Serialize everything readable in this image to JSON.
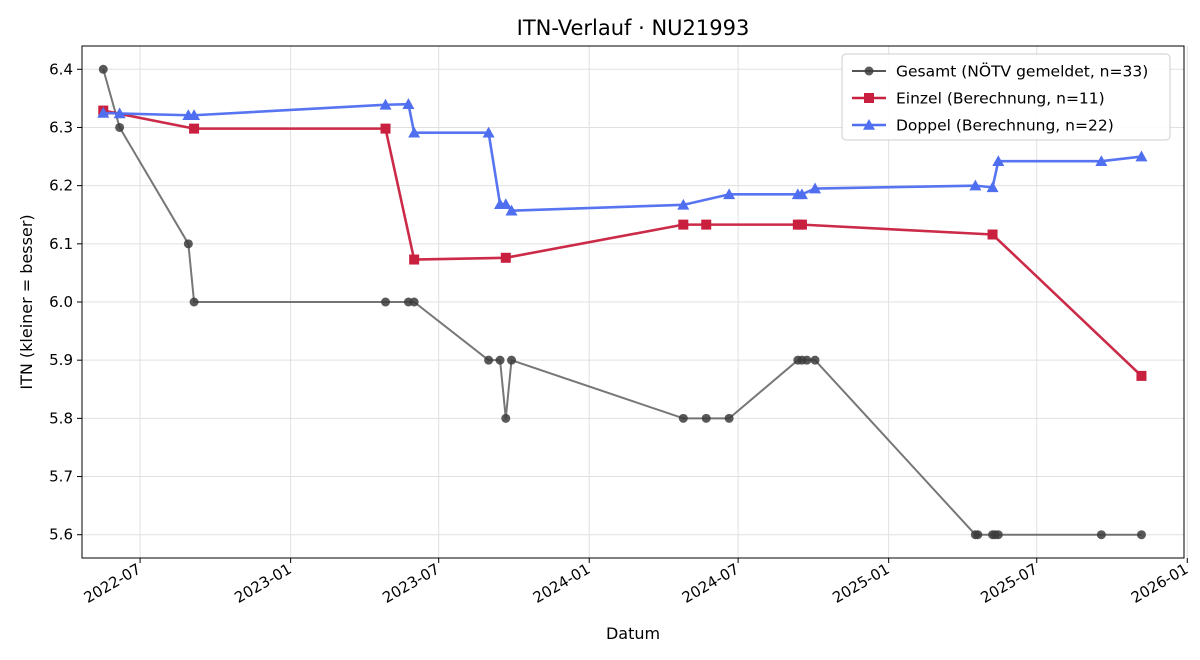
{
  "chart_data": {
    "type": "line",
    "title": "ITN-Verlauf · NU21993",
    "xlabel": "Datum",
    "ylabel": "ITN  (kleiner = besser)",
    "xlim": [
      "2022-04-21",
      "2025-12-28"
    ],
    "ylim": [
      5.56,
      6.44
    ],
    "x_ticks": [
      "2022-07",
      "2023-01",
      "2023-07",
      "2024-01",
      "2024-07",
      "2025-01",
      "2025-07",
      "2026-01"
    ],
    "y_ticks": [
      "5.6",
      "5.7",
      "5.8",
      "5.9",
      "6.0",
      "6.1",
      "6.2",
      "6.3",
      "6.4"
    ],
    "grid": true,
    "legend_position": "top-right",
    "series": [
      {
        "name": "Gesamt (NÖTV gemeldet, n=33)",
        "color": "#555555",
        "marker": "circle",
        "points": [
          [
            "2022-05-17",
            6.4
          ],
          [
            "2022-06-06",
            6.3
          ],
          [
            "2022-08-29",
            6.1
          ],
          [
            "2022-09-05",
            6.0
          ],
          [
            "2023-04-27",
            6.0
          ],
          [
            "2023-05-25",
            6.0
          ],
          [
            "2023-06-01",
            6.0
          ],
          [
            "2023-08-31",
            5.9
          ],
          [
            "2023-09-14",
            5.9
          ],
          [
            "2023-09-21",
            5.8
          ],
          [
            "2023-09-28",
            5.9
          ],
          [
            "2024-04-25",
            5.8
          ],
          [
            "2024-05-23",
            5.8
          ],
          [
            "2024-06-20",
            5.8
          ],
          [
            "2024-09-12",
            5.9
          ],
          [
            "2024-09-17",
            5.9
          ],
          [
            "2024-09-23",
            5.9
          ],
          [
            "2024-10-03",
            5.9
          ],
          [
            "2025-04-17",
            5.6
          ],
          [
            "2025-04-20",
            5.6
          ],
          [
            "2025-05-08",
            5.6
          ],
          [
            "2025-05-11",
            5.6
          ],
          [
            "2025-05-15",
            5.6
          ],
          [
            "2025-09-18",
            5.6
          ],
          [
            "2025-11-06",
            5.6
          ]
        ]
      },
      {
        "name": "Einzel (Berechnung, n=11)",
        "color": "#c8203e",
        "marker": "square",
        "points": [
          [
            "2022-05-17",
            6.329
          ],
          [
            "2022-09-05",
            6.298
          ],
          [
            "2023-04-27",
            6.298
          ],
          [
            "2023-06-01",
            6.073
          ],
          [
            "2023-09-21",
            6.076
          ],
          [
            "2024-04-25",
            6.133
          ],
          [
            "2024-05-23",
            6.133
          ],
          [
            "2024-09-12",
            6.133
          ],
          [
            "2024-09-17",
            6.133
          ],
          [
            "2025-05-08",
            6.116
          ],
          [
            "2025-11-06",
            5.873
          ]
        ]
      },
      {
        "name": "Doppel (Berechnung, n=22)",
        "color": "#4f6ef0",
        "marker": "triangle",
        "points": [
          [
            "2022-05-17",
            6.325
          ],
          [
            "2022-06-06",
            6.324
          ],
          [
            "2022-08-29",
            6.321
          ],
          [
            "2022-09-05",
            6.321
          ],
          [
            "2023-04-27",
            6.339
          ],
          [
            "2023-05-25",
            6.34
          ],
          [
            "2023-06-01",
            6.291
          ],
          [
            "2023-08-31",
            6.291
          ],
          [
            "2023-09-14",
            6.168
          ],
          [
            "2023-09-21",
            6.168
          ],
          [
            "2023-09-28",
            6.157
          ],
          [
            "2024-04-25",
            6.167
          ],
          [
            "2024-06-20",
            6.185
          ],
          [
            "2024-09-12",
            6.185
          ],
          [
            "2024-09-17",
            6.185
          ],
          [
            "2024-10-03",
            6.195
          ],
          [
            "2025-04-17",
            6.2
          ],
          [
            "2025-05-08",
            6.197
          ],
          [
            "2025-05-15",
            6.242
          ],
          [
            "2025-09-18",
            6.242
          ],
          [
            "2025-11-06",
            6.25
          ]
        ]
      }
    ]
  }
}
